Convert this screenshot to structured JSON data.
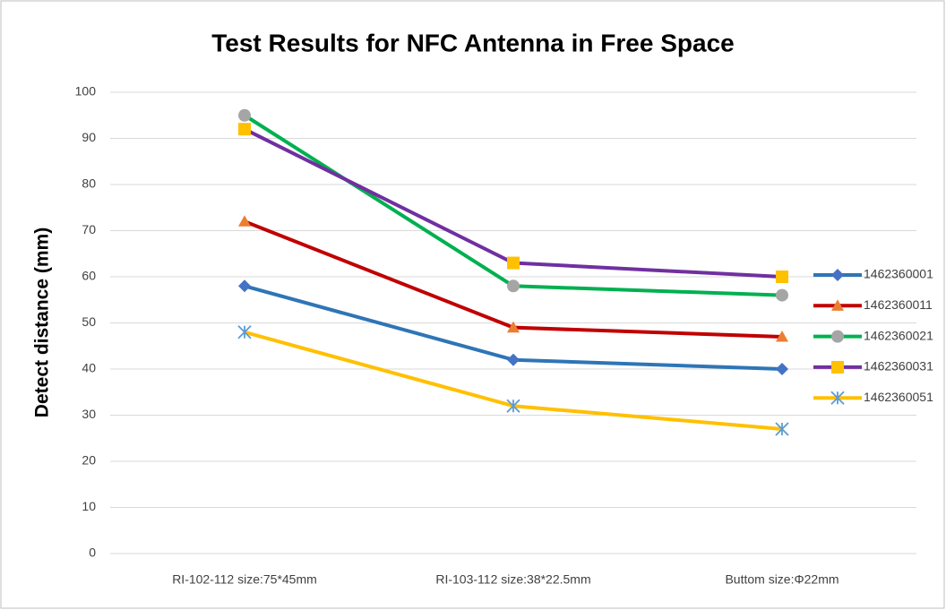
{
  "chart_data": {
    "type": "line",
    "title": "Test Results for NFC Antenna in Free Space",
    "y_label": "Detect distance (mm)",
    "categories": [
      "RI-102-112 size:75*45mm",
      "RI-103-112 size:38*22.5mm",
      "Buttom size:Φ22mm"
    ],
    "series": [
      {
        "name": "1462360001",
        "color": "#2e75b6",
        "marker": "diamond",
        "marker_color": "#4472c4",
        "values": [
          58,
          42,
          40
        ]
      },
      {
        "name": "1462360011",
        "color": "#c00000",
        "marker": "triangle",
        "marker_color": "#ed7d31",
        "values": [
          72,
          49,
          47
        ]
      },
      {
        "name": "1462360021",
        "color": "#00b050",
        "marker": "circle",
        "marker_color": "#a5a5a5",
        "values": [
          95,
          58,
          56
        ]
      },
      {
        "name": "1462360031",
        "color": "#7030a0",
        "marker": "square",
        "marker_color": "#ffc000",
        "values": [
          92,
          63,
          60
        ]
      },
      {
        "name": "1462360051",
        "color": "#ffc000",
        "marker": "asterisk",
        "marker_color": "#5b9bd5",
        "values": [
          48,
          32,
          27
        ]
      }
    ],
    "ylim": [
      0,
      100
    ],
    "yticks": [
      0,
      10,
      20,
      30,
      40,
      50,
      60,
      70,
      80,
      90,
      100
    ],
    "grid": true,
    "legend": "right"
  }
}
